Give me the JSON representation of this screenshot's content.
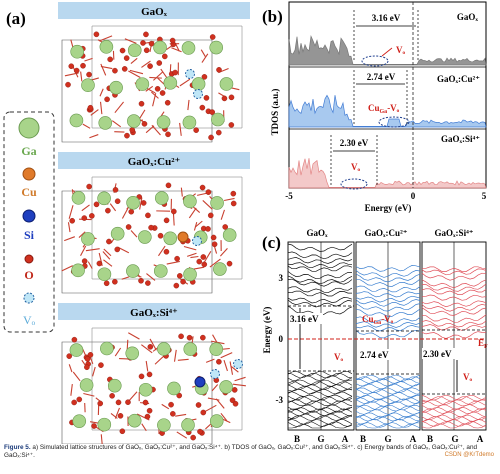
{
  "panel_a": {
    "label": "(a)",
    "titles": [
      "GaOₓ",
      "GaOₓ:Cu²⁺",
      "GaOₓ:Si⁴⁺"
    ],
    "legend": [
      {
        "label": "Ga",
        "color": "#a8d48a"
      },
      {
        "label": "Cu",
        "color": "#e07a2a"
      },
      {
        "label": "Si",
        "color": "#1f3fbf"
      },
      {
        "label": "O",
        "color": "#d0301f"
      },
      {
        "label": "Vₒ",
        "color": "#6fc3e8"
      }
    ]
  },
  "panel_b": {
    "label": "(b)",
    "ylabel": "TDOS (a.u.)",
    "xlabel": "Energy (eV)",
    "xticks": [
      "-5",
      "0",
      "5"
    ],
    "rows": [
      {
        "name": "GaOₓ",
        "gap": "3.16 eV",
        "defect": "Vₒ"
      },
      {
        "name": "GaOₓ:Cu²⁺",
        "gap": "2.74 eV",
        "defect": "Cu",
        "defect_sub": "Ga",
        "defect_tail": "-Vₒ"
      },
      {
        "name": "GaOₓ:Si⁴⁺",
        "gap": "2.30 eV",
        "defect": "Vₒ"
      }
    ]
  },
  "panel_c": {
    "label": "(c)",
    "ylabel": "Energy (eV)",
    "yticks": [
      "3",
      "0",
      "-3"
    ],
    "ef": "E",
    "ef_sub": "F",
    "columns": [
      {
        "title": "GaOₓ",
        "gap": "3.16 eV",
        "defect": "Vₒ",
        "color": "#111111",
        "xticks": [
          "B",
          "G",
          "A"
        ]
      },
      {
        "title": "GaOₓ:Cu²⁺",
        "gap": "2.74 eV",
        "defect": "Cu",
        "defect_sub": "Ga",
        "defect_tail": "-Vₒ",
        "color": "#3a7fd0",
        "xticks": [
          "B",
          "G",
          "A"
        ]
      },
      {
        "title": "GaOₓ:Si⁴⁺",
        "gap": "2.30 eV",
        "defect": "Vₒ",
        "color": "#e0505a",
        "xticks": [
          "B",
          "G",
          "A"
        ]
      }
    ]
  },
  "caption": {
    "lead": "Figure 5.",
    "text": " a) Simulated lattice structures of GaOₓ, GaOₓ:Cu²⁺, and GaOₓ:Si⁴⁺. b) TDOS of GaOₓ, GaOₓ:Cu²⁺, and GaOₓ:Si⁴⁺. c) Energy bands of GaOₓ, GaOₓ:Cu²⁺, and GaOₓ:Si⁴⁺."
  },
  "watermark": "CSDN @KrTdemo"
}
